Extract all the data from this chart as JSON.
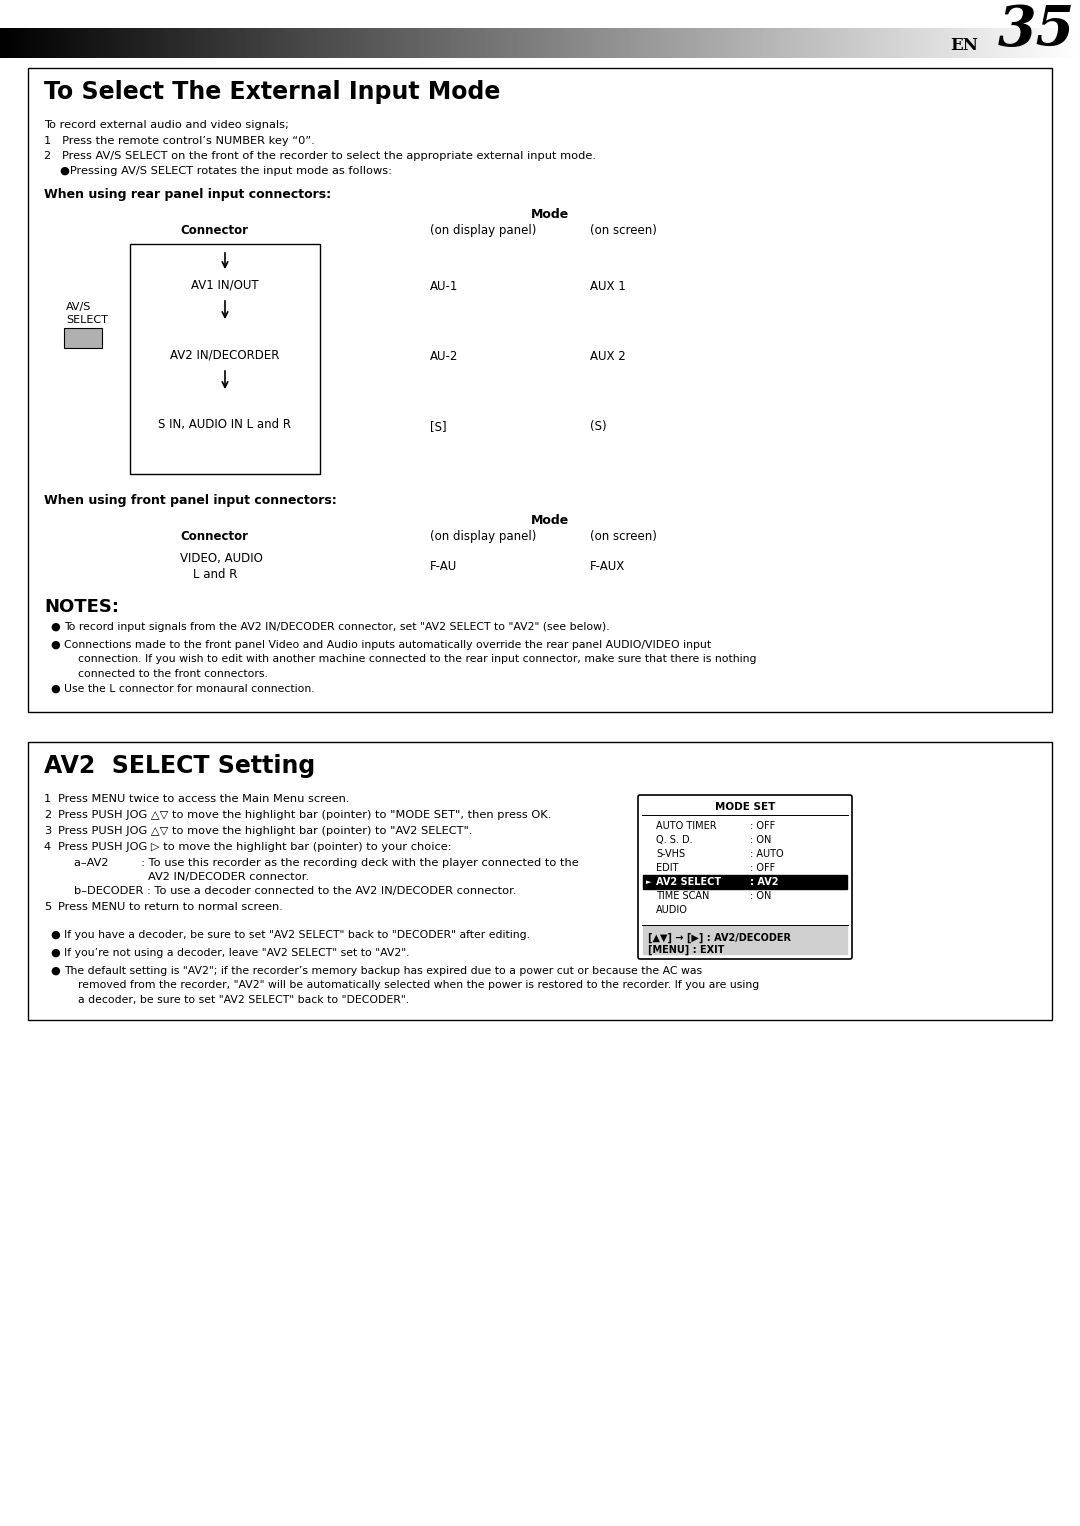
{
  "page_bg": "#ffffff",
  "box1_title": "To Select The External Input Mode",
  "box2_title": "AV2  SELECT Setting",
  "modeset_box": {
    "title": "MODE SET",
    "rows": [
      [
        "AUTO TIMER",
        ": OFF"
      ],
      [
        "Q. S. D.",
        ": ON"
      ],
      [
        "S-VHS",
        ": AUTO"
      ],
      [
        "EDIT",
        ": OFF"
      ],
      [
        "AV2 SELECT",
        ": AV2"
      ],
      [
        "TIME SCAN",
        ": ON"
      ],
      [
        "AUDIO",
        ""
      ]
    ],
    "highlight_row": 4,
    "footer1": "[▲▼] → [▶] : AV2/DECODER",
    "footer2": "[MENU] : EXIT"
  }
}
